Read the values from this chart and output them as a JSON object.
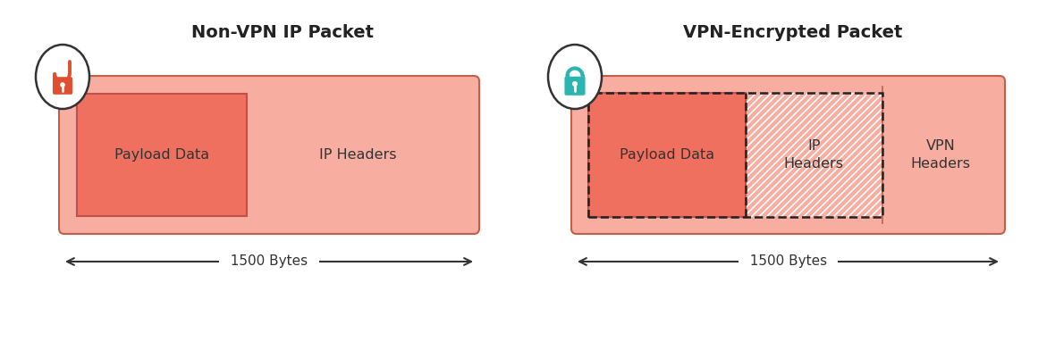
{
  "bg_color": "#ffffff",
  "title_left": "Non-VPN IP Packet",
  "title_right": "VPN-Encrypted Packet",
  "title_fontsize": 14,
  "title_fontweight": "bold",
  "title_color": "#222222",
  "label_color": "#333333",
  "label_fontsize": 11.5,
  "bytes_label": "1500 Bytes",
  "bytes_fontsize": 11,
  "outer_rect_fill_left": "#f7ada0",
  "outer_rect_fill_right": "#f7ada0",
  "outer_rect_edge": "#c0604a",
  "inner_payload_fill": "#f07060",
  "inner_payload_edge": "#c0504a",
  "hatch_fill": "#f7ada0",
  "hatch_lines": "#ffffff",
  "arrow_color": "#333333",
  "lock_open_color": "#e05030",
  "lock_closed_color": "#2ab5b0",
  "circle_fill": "#ffffff",
  "circle_edge": "#333333",
  "dashed_color": "#222222"
}
